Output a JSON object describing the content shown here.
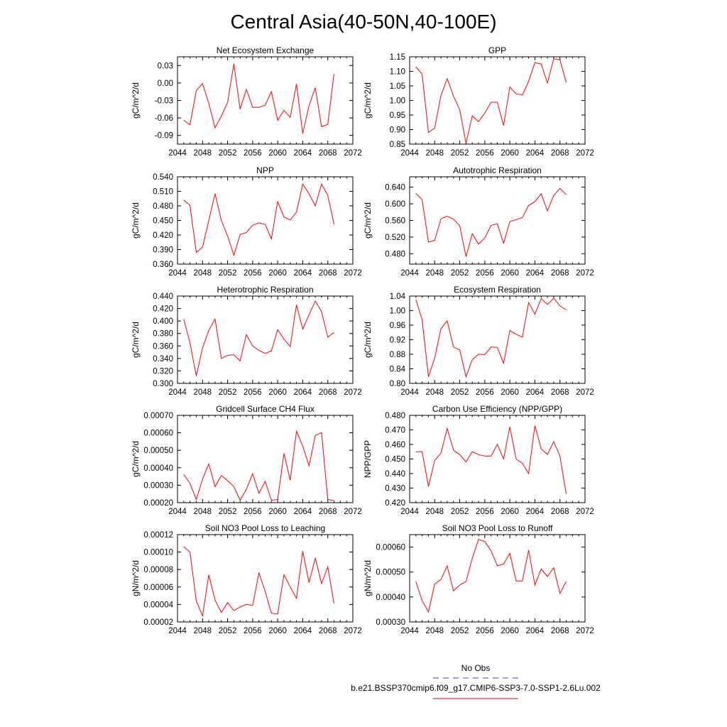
{
  "title": "Central Asia(40-50N,40-100E)",
  "colors": {
    "model": "#ff0000",
    "obs": "#3a3aff",
    "axes": "#000000"
  },
  "legend": [
    {
      "label": "No Obs",
      "style": "dashed",
      "color": "#3a3aff"
    },
    {
      "label": "b.e21.BSSP370cmip6.f09_g17.CMIP6-SSP3-7.0-SSP1-2.6Lu.002",
      "style": "solid",
      "color": "#ff0000"
    }
  ],
  "chart_data": [
    {
      "type": "line",
      "title": "Net Ecosystem Exchange",
      "ylabel": "gC/m^2/d",
      "xlim": [
        2044,
        2072
      ],
      "ylim": [
        -0.105,
        0.045
      ],
      "xticks": [
        "2044",
        "2048",
        "2052",
        "2056",
        "2060",
        "2064",
        "2068",
        "2072"
      ],
      "yticks": [
        "-0.09",
        "-0.06",
        "-0.03",
        "0.00",
        "0.03"
      ],
      "x": [
        2045,
        2046,
        2047,
        2048,
        2049,
        2050,
        2051,
        2052,
        2053,
        2054,
        2055,
        2056,
        2057,
        2058,
        2059,
        2060,
        2061,
        2062,
        2063,
        2064,
        2065,
        2066,
        2067,
        2068,
        2069
      ],
      "series": [
        {
          "values": [
            -0.064,
            -0.072,
            -0.013,
            -0.001,
            -0.035,
            -0.077,
            -0.057,
            -0.033,
            0.033,
            -0.045,
            -0.011,
            -0.042,
            -0.042,
            -0.038,
            -0.015,
            -0.064,
            -0.047,
            -0.059,
            -0.002,
            -0.087,
            -0.039,
            -0.008,
            -0.075,
            -0.071,
            0.016
          ]
        }
      ]
    },
    {
      "type": "line",
      "title": "GPP",
      "ylabel": "gC/m^2/d",
      "xlim": [
        2044,
        2072
      ],
      "ylim": [
        0.85,
        1.15
      ],
      "xticks": [
        "2044",
        "2048",
        "2052",
        "2056",
        "2060",
        "2064",
        "2068",
        "2072"
      ],
      "yticks": [
        "0.85",
        "0.90",
        "0.95",
        "1.00",
        "1.05",
        "1.10",
        "1.15"
      ],
      "x": [
        2045,
        2046,
        2047,
        2048,
        2049,
        2050,
        2051,
        2052,
        2053,
        2054,
        2055,
        2056,
        2057,
        2058,
        2059,
        2060,
        2061,
        2062,
        2063,
        2064,
        2065,
        2066,
        2067,
        2068,
        2069
      ],
      "series": [
        {
          "values": [
            1.116,
            1.09,
            0.89,
            0.905,
            1.017,
            1.075,
            1.015,
            0.968,
            0.853,
            0.947,
            0.927,
            0.957,
            0.994,
            0.994,
            0.914,
            1.046,
            1.023,
            1.019,
            1.066,
            1.13,
            1.125,
            1.06,
            1.143,
            1.14,
            1.062
          ]
        }
      ]
    },
    {
      "type": "line",
      "title": "NPP",
      "ylabel": "gC/m^2/d",
      "xlim": [
        2044,
        2072
      ],
      "ylim": [
        0.36,
        0.54
      ],
      "xticks": [
        "2044",
        "2048",
        "2052",
        "2056",
        "2060",
        "2064",
        "2068",
        "2072"
      ],
      "yticks": [
        "0.360",
        "0.390",
        "0.420",
        "0.450",
        "0.480",
        "0.510",
        "0.540"
      ],
      "x": [
        2045,
        2046,
        2047,
        2048,
        2049,
        2050,
        2051,
        2052,
        2053,
        2054,
        2055,
        2056,
        2057,
        2058,
        2059,
        2060,
        2061,
        2062,
        2063,
        2064,
        2065,
        2066,
        2067,
        2068,
        2069
      ],
      "series": [
        {
          "values": [
            0.492,
            0.481,
            0.384,
            0.395,
            0.45,
            0.505,
            0.45,
            0.418,
            0.378,
            0.421,
            0.425,
            0.44,
            0.445,
            0.442,
            0.412,
            0.489,
            0.457,
            0.451,
            0.467,
            0.525,
            0.505,
            0.48,
            0.525,
            0.502,
            0.442
          ]
        }
      ]
    },
    {
      "type": "line",
      "title": "Autotrophic Respiration",
      "ylabel": "gC/m^2/d",
      "xlim": [
        2044,
        2072
      ],
      "ylim": [
        0.455,
        0.665
      ],
      "xticks": [
        "2044",
        "2048",
        "2052",
        "2056",
        "2060",
        "2064",
        "2068",
        "2072"
      ],
      "yticks": [
        "0.480",
        "0.520",
        "0.560",
        "0.600",
        "0.640"
      ],
      "x": [
        2045,
        2046,
        2047,
        2048,
        2049,
        2050,
        2051,
        2052,
        2053,
        2054,
        2055,
        2056,
        2057,
        2058,
        2059,
        2060,
        2061,
        2062,
        2063,
        2064,
        2065,
        2066,
        2067,
        2068,
        2069
      ],
      "series": [
        {
          "values": [
            0.625,
            0.61,
            0.508,
            0.512,
            0.564,
            0.57,
            0.563,
            0.547,
            0.473,
            0.528,
            0.503,
            0.518,
            0.548,
            0.552,
            0.505,
            0.557,
            0.562,
            0.567,
            0.596,
            0.605,
            0.624,
            0.583,
            0.62,
            0.637,
            0.622
          ]
        }
      ]
    },
    {
      "type": "line",
      "title": "Heterotrophic Respiration",
      "ylabel": "gC/m^2/d",
      "xlim": [
        2044,
        2072
      ],
      "ylim": [
        0.3,
        0.44
      ],
      "xticks": [
        "2044",
        "2048",
        "2052",
        "2056",
        "2060",
        "2064",
        "2068",
        "2072"
      ],
      "yticks": [
        "0.300",
        "0.320",
        "0.340",
        "0.360",
        "0.380",
        "0.400",
        "0.420",
        "0.440"
      ],
      "x": [
        2045,
        2046,
        2047,
        2048,
        2049,
        2050,
        2051,
        2052,
        2053,
        2054,
        2055,
        2056,
        2057,
        2058,
        2059,
        2060,
        2061,
        2062,
        2063,
        2064,
        2065,
        2066,
        2067,
        2068,
        2069
      ],
      "series": [
        {
          "values": [
            0.403,
            0.365,
            0.312,
            0.357,
            0.385,
            0.403,
            0.34,
            0.345,
            0.346,
            0.336,
            0.378,
            0.36,
            0.353,
            0.348,
            0.352,
            0.386,
            0.371,
            0.359,
            0.426,
            0.387,
            0.41,
            0.432,
            0.415,
            0.374,
            0.382
          ]
        }
      ]
    },
    {
      "type": "line",
      "title": "Ecosystem Respiration",
      "ylabel": "gC/m^2/d",
      "xlim": [
        2044,
        2072
      ],
      "ylim": [
        0.8,
        1.04
      ],
      "xticks": [
        "2044",
        "2048",
        "2052",
        "2056",
        "2060",
        "2064",
        "2068",
        "2072"
      ],
      "yticks": [
        "0.80",
        "0.84",
        "0.88",
        "0.92",
        "0.96",
        "1.00",
        "1.04"
      ],
      "x": [
        2045,
        2046,
        2047,
        2048,
        2049,
        2050,
        2051,
        2052,
        2053,
        2054,
        2055,
        2056,
        2057,
        2058,
        2059,
        2060,
        2061,
        2062,
        2063,
        2064,
        2065,
        2066,
        2067,
        2068,
        2069
      ],
      "series": [
        {
          "values": [
            1.03,
            0.975,
            0.818,
            0.87,
            0.95,
            0.972,
            0.9,
            0.892,
            0.818,
            0.865,
            0.88,
            0.879,
            0.9,
            0.899,
            0.855,
            0.945,
            0.935,
            0.927,
            1.022,
            0.99,
            1.033,
            1.017,
            1.034,
            1.013,
            1.002
          ]
        }
      ]
    },
    {
      "type": "line",
      "title": "Gridcell Surface CH4 Flux",
      "ylabel": "gC/m^2/d",
      "xlim": [
        2044,
        2072
      ],
      "ylim": [
        0.0002,
        0.0007
      ],
      "xticks": [
        "2044",
        "2048",
        "2052",
        "2056",
        "2060",
        "2064",
        "2068",
        "2072"
      ],
      "yticks": [
        "0.00020",
        "0.00030",
        "0.00040",
        "0.00050",
        "0.00060",
        "0.00070"
      ],
      "x": [
        2045,
        2046,
        2047,
        2048,
        2049,
        2050,
        2051,
        2052,
        2053,
        2054,
        2055,
        2056,
        2057,
        2058,
        2059,
        2060,
        2061,
        2062,
        2063,
        2064,
        2065,
        2066,
        2067,
        2068,
        2069
      ],
      "series": [
        {
          "values": [
            0.000362,
            0.00031,
            0.000218,
            0.000335,
            0.000422,
            0.000292,
            0.000355,
            0.000326,
            0.000292,
            0.000214,
            0.000276,
            0.000366,
            0.000253,
            0.000322,
            0.000214,
            0.000218,
            0.000482,
            0.000328,
            0.000609,
            0.000525,
            0.000411,
            0.000585,
            0.000601,
            0.000218,
            0.000212
          ]
        }
      ]
    },
    {
      "type": "line",
      "title": "Carbon Use Efficiency (NPP/GPP)",
      "ylabel": "NPP/GPP",
      "xlim": [
        2044,
        2072
      ],
      "ylim": [
        0.42,
        0.48
      ],
      "xticks": [
        "2044",
        "2048",
        "2052",
        "2056",
        "2060",
        "2064",
        "2068",
        "2072"
      ],
      "yticks": [
        "0.420",
        "0.430",
        "0.440",
        "0.450",
        "0.460",
        "0.470",
        "0.480"
      ],
      "x": [
        2045,
        2046,
        2047,
        2048,
        2049,
        2050,
        2051,
        2052,
        2053,
        2054,
        2055,
        2056,
        2057,
        2058,
        2059,
        2060,
        2061,
        2062,
        2063,
        2064,
        2065,
        2066,
        2067,
        2068,
        2069
      ],
      "series": [
        {
          "values": [
            0.455,
            0.455,
            0.431,
            0.449,
            0.454,
            0.471,
            0.456,
            0.453,
            0.448,
            0.455,
            0.453,
            0.452,
            0.452,
            0.46,
            0.45,
            0.472,
            0.45,
            0.447,
            0.44,
            0.473,
            0.457,
            0.453,
            0.462,
            0.452,
            0.426
          ]
        }
      ]
    },
    {
      "type": "line",
      "title": "Soil NO3 Pool Loss to Leaching",
      "ylabel": "gN/m^2/d",
      "xlim": [
        2044,
        2072
      ],
      "ylim": [
        2e-05,
        0.00012
      ],
      "xticks": [
        "2044",
        "2048",
        "2052",
        "2056",
        "2060",
        "2064",
        "2068",
        "2072"
      ],
      "yticks": [
        "0.00002",
        "0.00004",
        "0.00006",
        "0.00008",
        "0.00010",
        "0.00012"
      ],
      "x": [
        2045,
        2046,
        2047,
        2048,
        2049,
        2050,
        2051,
        2052,
        2053,
        2054,
        2055,
        2056,
        2057,
        2058,
        2059,
        2060,
        2061,
        2062,
        2063,
        2064,
        2065,
        2066,
        2067,
        2068,
        2069
      ],
      "series": [
        {
          "values": [
            0.000106,
            0.0001,
            4.4e-05,
            2.7e-05,
            7.4e-05,
            4.5e-05,
            3.1e-05,
            4.2e-05,
            3.3e-05,
            3.7e-05,
            4e-05,
            3.9e-05,
            7.6e-05,
            5.5e-05,
            3e-05,
            2.9e-05,
            7.4e-05,
            6e-05,
            4.7e-05,
            0.000101,
            6.5e-05,
            9.3e-05,
            6.4e-05,
            8.3e-05,
            4.1e-05
          ]
        }
      ]
    },
    {
      "type": "line",
      "title": "Soil NO3 Pool Loss to Runoff",
      "ylabel": "gN/m^2/d",
      "xlim": [
        2044,
        2072
      ],
      "ylim": [
        0.0003,
        0.00065
      ],
      "xticks": [
        "2044",
        "2048",
        "2052",
        "2056",
        "2060",
        "2064",
        "2068",
        "2072"
      ],
      "yticks": [
        "0.00030",
        "0.00040",
        "0.00050",
        "0.00060"
      ],
      "x": [
        2045,
        2046,
        2047,
        2048,
        2049,
        2050,
        2051,
        2052,
        2053,
        2054,
        2055,
        2056,
        2057,
        2058,
        2059,
        2060,
        2061,
        2062,
        2063,
        2064,
        2065,
        2066,
        2067,
        2068,
        2069
      ],
      "series": [
        {
          "values": [
            0.000462,
            0.000385,
            0.00034,
            0.000452,
            0.00047,
            0.000524,
            0.000424,
            0.000448,
            0.000462,
            0.000555,
            0.000631,
            0.000622,
            0.000585,
            0.000525,
            0.000532,
            0.000575,
            0.000464,
            0.000464,
            0.000588,
            0.000448,
            0.000512,
            0.000482,
            0.000517,
            0.000415,
            0.000462
          ]
        }
      ]
    }
  ]
}
